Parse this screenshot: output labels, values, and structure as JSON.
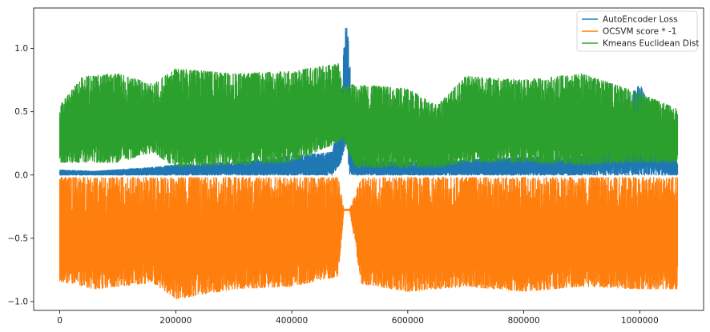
{
  "chart_data": {
    "type": "line",
    "title": "",
    "xlabel": "",
    "ylabel": "",
    "xlim": [
      -45000,
      1110000
    ],
    "ylim": [
      -1.07,
      1.32
    ],
    "x_ticks": [
      0,
      200000,
      400000,
      600000,
      800000,
      1000000
    ],
    "x_tick_labels": [
      "0",
      "200000",
      "400000",
      "600000",
      "800000",
      "1000000"
    ],
    "y_ticks": [
      -1.0,
      -0.5,
      0.0,
      0.5,
      1.0
    ],
    "y_tick_labels": [
      "−1.0",
      "−0.5",
      "0.0",
      "0.5",
      "1.0"
    ],
    "legend_position": "top-right",
    "grid": false,
    "series": [
      {
        "name": "AutoEncoder Loss",
        "color": "#1f77b4",
        "x": [
          0,
          60000,
          160000,
          200000,
          300000,
          400000,
          470000,
          485000,
          490000,
          495000,
          500000,
          510000,
          600000,
          700000,
          800000,
          900000,
          1000000,
          1065000
        ],
        "upper": [
          0.04,
          0.03,
          0.06,
          0.08,
          0.1,
          0.15,
          0.18,
          0.6,
          1.05,
          1.25,
          0.9,
          0.12,
          0.1,
          0.12,
          0.14,
          0.15,
          0.72,
          0.1
        ],
        "lower": [
          0.0,
          0.0,
          0.0,
          0.0,
          0.0,
          0.0,
          0.0,
          0.1,
          0.2,
          0.2,
          0.0,
          0.0,
          0.0,
          0.0,
          0.0,
          0.0,
          0.0,
          0.0
        ]
      },
      {
        "name": "OCSVM score * -1",
        "color": "#ff7f0e",
        "x": [
          0,
          60000,
          160000,
          200000,
          300000,
          400000,
          480000,
          490000,
          500000,
          520000,
          600000,
          700000,
          800000,
          900000,
          1000000,
          1065000
        ],
        "upper": [
          -0.02,
          -0.02,
          -0.02,
          -0.02,
          -0.02,
          -0.02,
          -0.02,
          -0.27,
          -0.27,
          -0.02,
          -0.02,
          -0.02,
          -0.02,
          -0.02,
          -0.02,
          -0.02
        ],
        "lower": [
          -0.84,
          -0.9,
          -0.85,
          -0.98,
          -0.9,
          -0.88,
          -0.8,
          -0.28,
          -0.28,
          -0.86,
          -0.92,
          -0.88,
          -0.92,
          -0.88,
          -0.9,
          -0.9
        ]
      },
      {
        "name": "Kmeans Euclidean Dist",
        "color": "#2ca02c",
        "x": [
          0,
          40000,
          100000,
          160000,
          200000,
          300000,
          400000,
          480000,
          490000,
          510000,
          600000,
          650000,
          700000,
          800000,
          900000,
          1000000,
          1065000
        ],
        "upper": [
          0.55,
          0.78,
          0.8,
          0.72,
          0.84,
          0.8,
          0.82,
          0.88,
          0.7,
          0.72,
          0.68,
          0.55,
          0.78,
          0.75,
          0.8,
          0.65,
          0.52
        ],
        "lower": [
          0.1,
          0.1,
          0.1,
          0.18,
          0.06,
          0.08,
          0.1,
          0.26,
          0.26,
          0.06,
          0.06,
          0.06,
          0.1,
          0.1,
          0.08,
          0.1,
          0.1
        ]
      }
    ]
  }
}
